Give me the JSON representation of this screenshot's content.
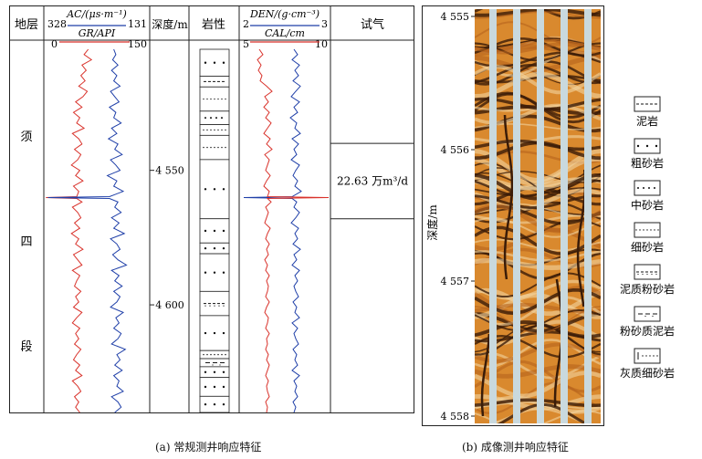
{
  "chart_data": [
    {
      "type": "line",
      "caption": "(a) 常规测井响应特征",
      "columns": {
        "formation": "地层",
        "depth": "深度/m",
        "lithology": "岩性",
        "test": "试气"
      },
      "track1": {
        "top_label": "AC/(μs·m⁻¹)",
        "top_min": "328",
        "top_max": "131",
        "bottom_label": "GR/API",
        "bottom_min": "0",
        "bottom_max": "150",
        "colors": {
          "AC": "#1f3fa8",
          "GR": "#d9322b"
        }
      },
      "track2": {
        "top_label": "DEN/(g·cm⁻³)",
        "top_min": "2",
        "top_max": "3",
        "bottom_label": "CAL/cm",
        "bottom_min": "5",
        "bottom_max": "10",
        "colors": {
          "DEN": "#1f3fa8",
          "CAL": "#d9322b"
        }
      },
      "formation_chars": [
        "须",
        "四",
        "段"
      ],
      "depth_range": [
        4505,
        4640
      ],
      "depth_ticks": [
        {
          "value": 4550,
          "label": "4 550"
        },
        {
          "value": 4600,
          "label": "4 600"
        }
      ],
      "gas_test": {
        "top": 4540,
        "bottom": 4568,
        "result": "22.63 万m³/d"
      },
      "lithology_layers": [
        {
          "top": 4505,
          "bottom": 4515,
          "type": "coarse"
        },
        {
          "top": 4515,
          "bottom": 4519,
          "type": "mudstone"
        },
        {
          "top": 4519,
          "bottom": 4528,
          "type": "fine"
        },
        {
          "top": 4528,
          "bottom": 4533,
          "type": "medium"
        },
        {
          "top": 4533,
          "bottom": 4537,
          "type": "fine"
        },
        {
          "top": 4537,
          "bottom": 4546,
          "type": "fine"
        },
        {
          "top": 4546,
          "bottom": 4568,
          "type": "coarse"
        },
        {
          "top": 4568,
          "bottom": 4577,
          "type": "coarse"
        },
        {
          "top": 4577,
          "bottom": 4581,
          "type": "coarse"
        },
        {
          "top": 4581,
          "bottom": 4595,
          "type": "coarse"
        },
        {
          "top": 4595,
          "bottom": 4604,
          "type": "muddy-silt"
        },
        {
          "top": 4604,
          "bottom": 4617,
          "type": "coarse"
        },
        {
          "top": 4617,
          "bottom": 4620,
          "type": "fine"
        },
        {
          "top": 4620,
          "bottom": 4623,
          "type": "silty-mud"
        },
        {
          "top": 4623,
          "bottom": 4627,
          "type": "coarse"
        },
        {
          "top": 4627,
          "bottom": 4634,
          "type": "coarse"
        },
        {
          "top": 4634,
          "bottom": 4640,
          "type": "coarse"
        }
      ],
      "curves": {
        "AC_x": [
          0.66,
          0.68,
          0.65,
          0.7,
          0.64,
          0.69,
          0.66,
          0.72,
          0.63,
          0.67,
          0.71,
          0.62,
          0.68,
          0.66,
          0.73,
          0.64,
          0.69,
          0.61,
          0.7,
          0.67,
          0.74,
          0.63,
          0.68,
          0.72,
          0.6,
          0.69,
          0.66,
          0.75,
          0.62,
          0.7,
          0.67,
          0.73,
          0.64,
          0.71,
          0.66,
          0.76,
          0.63,
          0.69,
          0.72,
          0.65,
          0.7,
          0.78,
          0.64,
          0.71,
          0.67,
          0.74,
          0.66,
          0.72,
          0.69,
          0.63,
          0.75,
          0.68,
          0.71,
          0.66,
          0.73,
          0.7,
          0.64,
          0.77,
          0.69,
          0.72,
          0.67,
          0.74,
          0.66,
          0.71,
          0.69,
          0.75,
          0.64,
          0.7,
          0.73,
          0.67
        ],
        "GR_x": [
          0.42,
          0.38,
          0.45,
          0.36,
          0.4,
          0.35,
          0.39,
          0.33,
          0.41,
          0.37,
          0.3,
          0.36,
          0.28,
          0.34,
          0.31,
          0.38,
          0.27,
          0.33,
          0.36,
          0.29,
          0.35,
          0.32,
          0.26,
          0.34,
          0.3,
          0.37,
          0.28,
          0.33,
          0.31,
          0.36,
          0.27,
          0.32,
          0.35,
          0.29,
          0.34,
          0.26,
          0.33,
          0.3,
          0.37,
          0.28,
          0.32,
          0.36,
          0.27,
          0.34,
          0.31,
          0.29,
          0.35,
          0.3,
          0.33,
          0.28,
          0.36,
          0.31,
          0.27,
          0.34,
          0.3,
          0.33,
          0.29,
          0.35,
          0.31,
          0.28,
          0.34,
          0.3,
          0.36,
          0.27,
          0.32,
          0.35,
          0.29,
          0.33,
          0.3,
          0.34
        ],
        "DEN_x": [
          0.6,
          0.64,
          0.58,
          0.66,
          0.61,
          0.65,
          0.59,
          0.67,
          0.62,
          0.57,
          0.66,
          0.6,
          0.64,
          0.56,
          0.63,
          0.61,
          0.67,
          0.58,
          0.65,
          0.6,
          0.63,
          0.57,
          0.66,
          0.62,
          0.59,
          0.64,
          0.61,
          0.68,
          0.58,
          0.63,
          0.6,
          0.66,
          0.62,
          0.57,
          0.65,
          0.61,
          0.64,
          0.59,
          0.67,
          0.6,
          0.63,
          0.58,
          0.66,
          0.61,
          0.64,
          0.6,
          0.62,
          0.65,
          0.59,
          0.63,
          0.61,
          0.66,
          0.58,
          0.64,
          0.6,
          0.62,
          0.65,
          0.59,
          0.63,
          0.61,
          0.64,
          0.58,
          0.66,
          0.6,
          0.63,
          0.61,
          0.64,
          0.59,
          0.62,
          0.6
        ],
        "CAL_x": [
          0.22,
          0.26,
          0.2,
          0.24,
          0.21,
          0.25,
          0.23,
          0.3,
          0.36,
          0.28,
          0.32,
          0.27,
          0.33,
          0.29,
          0.35,
          0.31,
          0.27,
          0.34,
          0.3,
          0.36,
          0.28,
          0.33,
          0.31,
          0.29,
          0.34,
          0.3,
          0.27,
          0.33,
          0.31,
          0.35,
          0.29,
          0.32,
          0.3,
          0.28,
          0.34,
          0.31,
          0.29,
          0.33,
          0.3,
          0.32,
          0.28,
          0.31,
          0.29,
          0.33,
          0.3,
          0.32,
          0.31,
          0.29,
          0.33,
          0.3,
          0.28,
          0.32,
          0.31,
          0.29,
          0.33,
          0.3,
          0.31,
          0.29,
          0.32,
          0.3,
          0.33,
          0.31,
          0.29,
          0.32,
          0.3,
          0.31,
          0.33,
          0.29,
          0.31,
          0.3
        ],
        "spike_depth": 4560
      }
    },
    {
      "type": "image-log",
      "caption": "(b) 成像测井响应特征",
      "ylabel": "深度/m",
      "y_ticks": [
        "4 555",
        "4 556",
        "4 557",
        "4 558"
      ],
      "legend": [
        {
          "label": "泥岩",
          "pattern": "mudstone"
        },
        {
          "label": "粗砂岩",
          "pattern": "coarse"
        },
        {
          "label": "中砂岩",
          "pattern": "medium"
        },
        {
          "label": "细砂岩",
          "pattern": "fine"
        },
        {
          "label": "泥质粉砂岩",
          "pattern": "muddy-silt"
        },
        {
          "label": "粉砂质泥岩",
          "pattern": "silty-mud"
        },
        {
          "label": "灰质细砂岩",
          "pattern": "calc-fine"
        }
      ],
      "image_colors": {
        "base": "#d9892e",
        "dark": "#3a1c08",
        "light": "#f2d3a0",
        "pad_gap": "#c9d9de"
      }
    }
  ]
}
